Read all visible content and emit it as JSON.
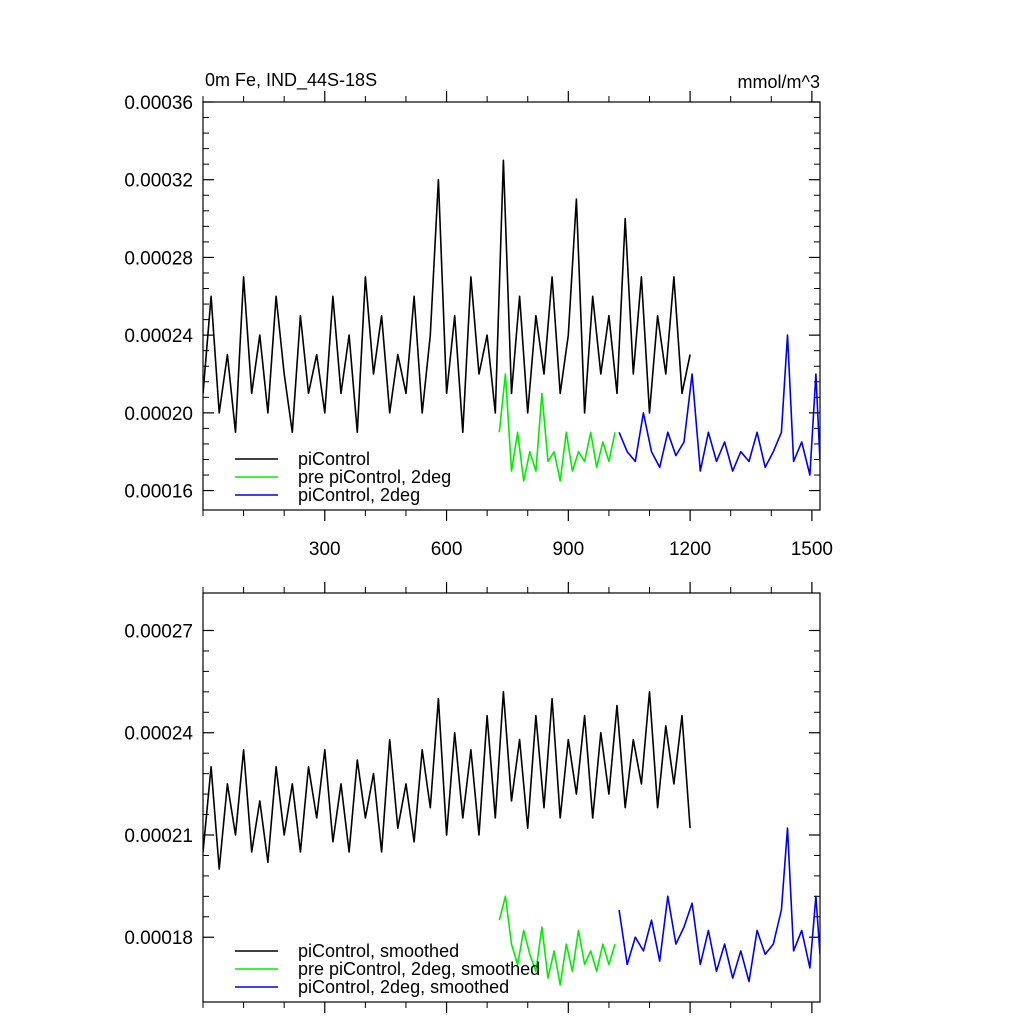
{
  "chart_data": [
    {
      "type": "line",
      "title": "0m Fe, IND_44S-18S",
      "units": "mmol/m^3",
      "xlim": [
        0,
        1520
      ],
      "ylim": [
        0.00015,
        0.00036
      ],
      "xticks": [
        300,
        600,
        900,
        1200,
        1500
      ],
      "xtick_labels": [
        "300",
        "600",
        "900",
        "1200",
        "1500"
      ],
      "yticks": [
        0.00016,
        0.0002,
        0.00024,
        0.00028,
        0.00032,
        0.00036
      ],
      "ytick_labels": [
        "0.00016",
        "0.00020",
        "0.00024",
        "0.00028",
        "0.00032",
        "0.00036"
      ],
      "legend_position": "bottom-left",
      "series": [
        {
          "name": "piControl",
          "color": "#000000",
          "x": [
            0,
            20,
            40,
            60,
            80,
            100,
            120,
            140,
            160,
            180,
            200,
            220,
            240,
            260,
            280,
            300,
            320,
            340,
            360,
            380,
            400,
            420,
            440,
            460,
            480,
            500,
            520,
            540,
            560,
            580,
            600,
            620,
            640,
            660,
            680,
            700,
            720,
            740,
            760,
            780,
            800,
            820,
            840,
            860,
            880,
            900,
            920,
            940,
            960,
            980,
            1000,
            1020,
            1040,
            1060,
            1080,
            1100,
            1120,
            1140,
            1160,
            1180,
            1200
          ],
          "y": [
            0.00021,
            0.00026,
            0.0002,
            0.00023,
            0.00019,
            0.00027,
            0.00021,
            0.00024,
            0.0002,
            0.00026,
            0.00022,
            0.00019,
            0.00025,
            0.00021,
            0.00023,
            0.0002,
            0.00026,
            0.00021,
            0.00024,
            0.00019,
            0.00027,
            0.00022,
            0.00025,
            0.0002,
            0.00023,
            0.00021,
            0.00026,
            0.0002,
            0.00024,
            0.00032,
            0.00021,
            0.00025,
            0.00019,
            0.00027,
            0.00022,
            0.00024,
            0.0002,
            0.00033,
            0.00021,
            0.00026,
            0.0002,
            0.00025,
            0.00022,
            0.00027,
            0.00021,
            0.00024,
            0.00031,
            0.0002,
            0.00026,
            0.00022,
            0.00025,
            0.00021,
            0.0003,
            0.00022,
            0.00027,
            0.0002,
            0.00025,
            0.00022,
            0.00027,
            0.00021,
            0.00023
          ]
        },
        {
          "name": "pre piControl, 2deg",
          "color": "#00ee00",
          "x": [
            730,
            745,
            760,
            775,
            790,
            805,
            820,
            835,
            850,
            865,
            880,
            895,
            910,
            925,
            940,
            955,
            970,
            985,
            1000,
            1015
          ],
          "y": [
            0.00019,
            0.00022,
            0.00017,
            0.00019,
            0.000165,
            0.00018,
            0.00017,
            0.00021,
            0.000175,
            0.00018,
            0.000165,
            0.00019,
            0.00017,
            0.00018,
            0.000175,
            0.00019,
            0.000172,
            0.000185,
            0.000175,
            0.00019
          ]
        },
        {
          "name": "piControl, 2deg",
          "color": "#0000ee",
          "x": [
            1025,
            1045,
            1065,
            1085,
            1105,
            1125,
            1145,
            1165,
            1185,
            1205,
            1225,
            1245,
            1265,
            1285,
            1305,
            1325,
            1345,
            1365,
            1385,
            1405,
            1425,
            1440,
            1455,
            1475,
            1495,
            1510,
            1520
          ],
          "y": [
            0.00019,
            0.00018,
            0.000175,
            0.0002,
            0.00018,
            0.000172,
            0.00019,
            0.000178,
            0.000185,
            0.00022,
            0.00017,
            0.00019,
            0.000175,
            0.000185,
            0.00017,
            0.00018,
            0.000175,
            0.00019,
            0.000172,
            0.00018,
            0.00019,
            0.00024,
            0.000175,
            0.000185,
            0.000168,
            0.00022,
            0.000175
          ]
        }
      ]
    },
    {
      "type": "line",
      "xlim": [
        0,
        1520
      ],
      "ylim": [
        0.000161,
        0.000281
      ],
      "xticks": [
        300,
        600,
        900,
        1200,
        1500
      ],
      "yticks": [
        0.00018,
        0.00021,
        0.00024,
        0.00027
      ],
      "ytick_labels": [
        "0.00018",
        "0.00021",
        "0.00024",
        "0.00027"
      ],
      "legend_position": "bottom-left",
      "series": [
        {
          "name": "piControl, smoothed",
          "color": "#000000",
          "x": [
            0,
            20,
            40,
            60,
            80,
            100,
            120,
            140,
            160,
            180,
            200,
            220,
            240,
            260,
            280,
            300,
            320,
            340,
            360,
            380,
            400,
            420,
            440,
            460,
            480,
            500,
            520,
            540,
            560,
            580,
            600,
            620,
            640,
            660,
            680,
            700,
            720,
            740,
            760,
            780,
            800,
            820,
            840,
            860,
            880,
            900,
            920,
            940,
            960,
            980,
            1000,
            1020,
            1040,
            1060,
            1080,
            1100,
            1120,
            1140,
            1160,
            1180,
            1200
          ],
          "y": [
            0.000205,
            0.00023,
            0.0002,
            0.000225,
            0.00021,
            0.000235,
            0.000205,
            0.00022,
            0.000202,
            0.00023,
            0.00021,
            0.000225,
            0.000205,
            0.00023,
            0.000215,
            0.000235,
            0.000208,
            0.000225,
            0.000205,
            0.000232,
            0.000215,
            0.000228,
            0.000205,
            0.000238,
            0.000212,
            0.000225,
            0.000208,
            0.000235,
            0.000218,
            0.00025,
            0.00021,
            0.00024,
            0.000215,
            0.000235,
            0.00021,
            0.000245,
            0.000215,
            0.000252,
            0.00022,
            0.000238,
            0.000212,
            0.000245,
            0.000218,
            0.00025,
            0.000215,
            0.000238,
            0.000222,
            0.000245,
            0.000215,
            0.00024,
            0.000222,
            0.000248,
            0.000218,
            0.000238,
            0.000225,
            0.000252,
            0.000218,
            0.000242,
            0.000225,
            0.000245,
            0.000212
          ]
        },
        {
          "name": "pre piControl, 2deg, smoothed",
          "color": "#00ee00",
          "x": [
            730,
            745,
            760,
            775,
            790,
            805,
            820,
            835,
            850,
            865,
            880,
            895,
            910,
            925,
            940,
            955,
            970,
            985,
            1000,
            1015
          ],
          "y": [
            0.000185,
            0.000192,
            0.000178,
            0.000172,
            0.000182,
            0.000175,
            0.00017,
            0.000183,
            0.000168,
            0.000176,
            0.000166,
            0.000178,
            0.00017,
            0.000182,
            0.000172,
            0.000176,
            0.00017,
            0.000178,
            0.000172,
            0.000178
          ]
        },
        {
          "name": "piControl, 2deg, smoothed",
          "color": "#0000ee",
          "x": [
            1025,
            1045,
            1065,
            1085,
            1105,
            1125,
            1145,
            1165,
            1185,
            1205,
            1225,
            1245,
            1265,
            1285,
            1305,
            1325,
            1345,
            1365,
            1385,
            1405,
            1425,
            1440,
            1455,
            1475,
            1495,
            1510,
            1520
          ],
          "y": [
            0.000188,
            0.000172,
            0.00018,
            0.000176,
            0.000185,
            0.000173,
            0.000192,
            0.000178,
            0.000183,
            0.00019,
            0.000172,
            0.000182,
            0.00017,
            0.000178,
            0.000168,
            0.000176,
            0.000167,
            0.000182,
            0.000175,
            0.000178,
            0.000188,
            0.000212,
            0.000176,
            0.000182,
            0.000171,
            0.000192,
            0.000175
          ]
        }
      ]
    }
  ]
}
